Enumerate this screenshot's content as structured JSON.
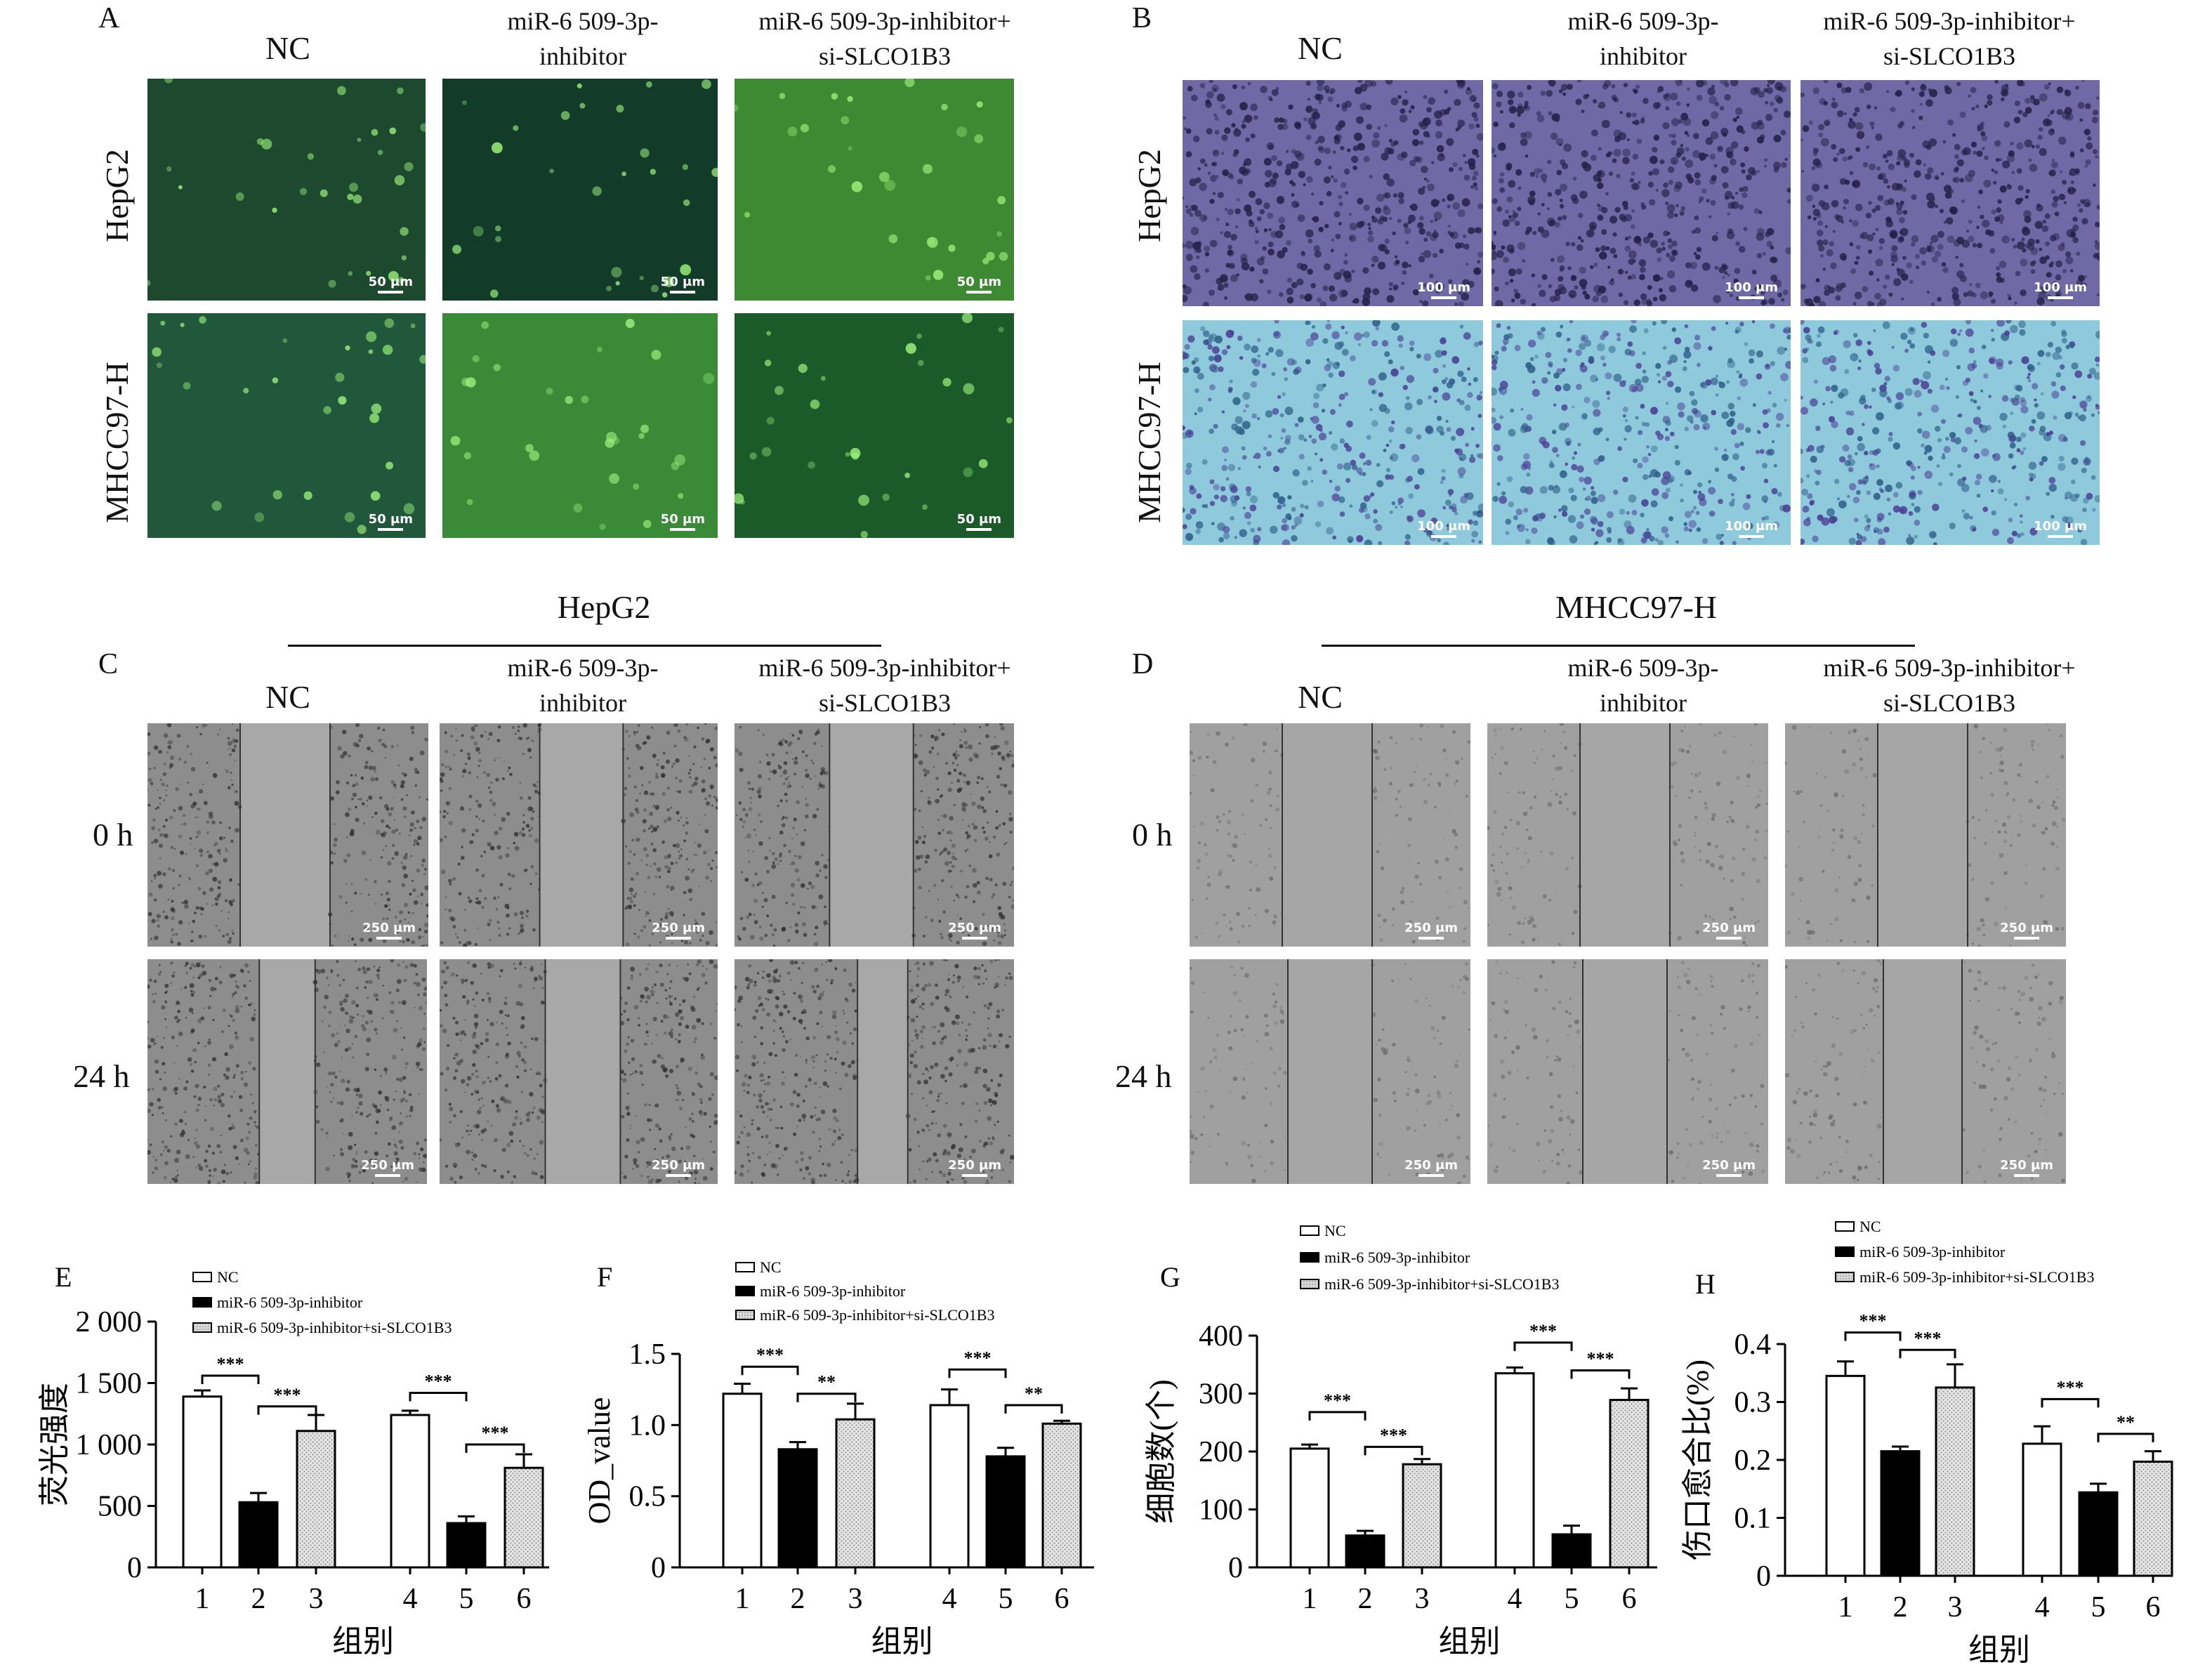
{
  "panels": {
    "A": {
      "letter": "A",
      "cols": [
        "NC",
        "miR-6 509-3p-\ninhibitor",
        "miR-6 509-3p-inhibitor+\nsi-SLCO1B3"
      ],
      "rows": [
        "HepG2",
        "MHCC97-H"
      ],
      "scale": "50 μm",
      "colors": [
        "#1d4a2f",
        "#123b2a",
        "#3e8a32",
        "#21573a",
        "#3a8a38",
        "#1d5a2a"
      ]
    },
    "B": {
      "letter": "B",
      "cols": [
        "NC",
        "miR-6 509-3p-\ninhibitor",
        "miR-6 509-3p-inhibitor+\nsi-SLCO1B3"
      ],
      "rows": [
        "HepG2",
        "MHCC97-H"
      ],
      "scale": "100 μm"
    },
    "C": {
      "letter": "C",
      "group": "HepG2",
      "cols": [
        "NC",
        "miR-6 509-3p-\ninhibitor",
        "miR-6 509-3p-inhibitor+\nsi-SLCO1B3"
      ],
      "rows": [
        "0 h",
        "24 h"
      ],
      "scale": "250 μm"
    },
    "D": {
      "letter": "D",
      "group": "MHCC97-H",
      "cols": [
        "NC",
        "miR-6 509-3p-\ninhibitor",
        "miR-6 509-3p-inhibitor+\nsi-SLCO1B3"
      ],
      "rows": [
        "0 h",
        "24 h"
      ],
      "scale": "250 μm"
    }
  },
  "chart_data": [
    {
      "letter": "E",
      "type": "bar",
      "legend": [
        "NC",
        "miR-6 509-3p-inhibitor",
        "miR-6 509-3p-inhibitor+si-SLCO1B3"
      ],
      "categories": [
        "1",
        "2",
        "3",
        "4",
        "5",
        "6"
      ],
      "values": [
        1390,
        530,
        1110,
        1240,
        360,
        810
      ],
      "errors": [
        50,
        75,
        130,
        35,
        55,
        110
      ],
      "ylim": [
        0,
        2000
      ],
      "yticks": [
        0,
        500,
        1000,
        1500,
        2000
      ],
      "ytick_labels": [
        "0",
        "500",
        "1 000",
        "1 500",
        "2 000"
      ],
      "ylabel": "荧光强度",
      "xlabel": "组别",
      "sig": [
        {
          "from": 0,
          "to": 1,
          "y": 1560,
          "label": "***"
        },
        {
          "from": 1,
          "to": 2,
          "y": 1310,
          "label": "***"
        },
        {
          "from": 3,
          "to": 4,
          "y": 1420,
          "label": "***"
        },
        {
          "from": 4,
          "to": 5,
          "y": 1000,
          "label": "***"
        }
      ]
    },
    {
      "letter": "F",
      "type": "bar",
      "legend": [
        "NC",
        "miR-6 509-3p-inhibitor",
        "miR-6 509-3p-inhibitor+si-SLCO1B3"
      ],
      "categories": [
        "1",
        "2",
        "3",
        "4",
        "5",
        "6"
      ],
      "values": [
        1.22,
        0.83,
        1.04,
        1.14,
        0.78,
        1.01
      ],
      "errors": [
        0.07,
        0.05,
        0.11,
        0.11,
        0.06,
        0.02
      ],
      "ylim": [
        0,
        1.5
      ],
      "yticks": [
        0,
        0.5,
        1.0,
        1.5
      ],
      "ytick_labels": [
        "0",
        "0.5",
        "1.0",
        "1.5"
      ],
      "ylabel": "OD_value",
      "xlabel": "组别",
      "sig": [
        {
          "from": 0,
          "to": 1,
          "y": 1.41,
          "label": "***"
        },
        {
          "from": 1,
          "to": 2,
          "y": 1.22,
          "label": "**"
        },
        {
          "from": 3,
          "to": 4,
          "y": 1.39,
          "label": "***"
        },
        {
          "from": 4,
          "to": 5,
          "y": 1.14,
          "label": "**"
        }
      ]
    },
    {
      "letter": "G",
      "type": "bar",
      "legend": [
        "NC",
        "miR-6 509-3p-inhibitor",
        "miR-6 509-3p-inhibitor+si-SLCO1B3"
      ],
      "categories": [
        "1",
        "2",
        "3",
        "4",
        "5",
        "6"
      ],
      "values": [
        205,
        55,
        178,
        335,
        57,
        289
      ],
      "errors": [
        7,
        8,
        9,
        10,
        15,
        20
      ],
      "ylim": [
        0,
        400
      ],
      "yticks": [
        0,
        100,
        200,
        300,
        400
      ],
      "ytick_labels": [
        "0",
        "100",
        "200",
        "300",
        "400"
      ],
      "ylabel": "细胞数(个)",
      "xlabel": "组别",
      "sig": [
        {
          "from": 0,
          "to": 1,
          "y": 268,
          "label": "***"
        },
        {
          "from": 1,
          "to": 2,
          "y": 208,
          "label": "***"
        },
        {
          "from": 3,
          "to": 4,
          "y": 388,
          "label": "***"
        },
        {
          "from": 4,
          "to": 5,
          "y": 340,
          "label": "***"
        }
      ]
    },
    {
      "letter": "H",
      "type": "bar",
      "legend": [
        "NC",
        "miR-6 509-3p-inhibitor",
        "miR-6 509-3p-inhibitor+si-SLCO1B3"
      ],
      "categories": [
        "1",
        "2",
        "3",
        "4",
        "5",
        "6"
      ],
      "values": [
        0.345,
        0.215,
        0.325,
        0.228,
        0.144,
        0.197
      ],
      "errors": [
        0.025,
        0.008,
        0.04,
        0.03,
        0.015,
        0.018
      ],
      "ylim": [
        0,
        0.4
      ],
      "yticks": [
        0,
        0.1,
        0.2,
        0.3,
        0.4
      ],
      "ytick_labels": [
        "0",
        "0.1",
        "0.2",
        "0.3",
        "0.4"
      ],
      "ylabel": "伤口愈合比(%)",
      "xlabel": "组别",
      "sig": [
        {
          "from": 0,
          "to": 1,
          "y": 0.42,
          "label": "***"
        },
        {
          "from": 1,
          "to": 2,
          "y": 0.39,
          "label": "***"
        },
        {
          "from": 3,
          "to": 4,
          "y": 0.305,
          "label": "***"
        },
        {
          "from": 4,
          "to": 5,
          "y": 0.245,
          "label": "**"
        }
      ]
    }
  ]
}
